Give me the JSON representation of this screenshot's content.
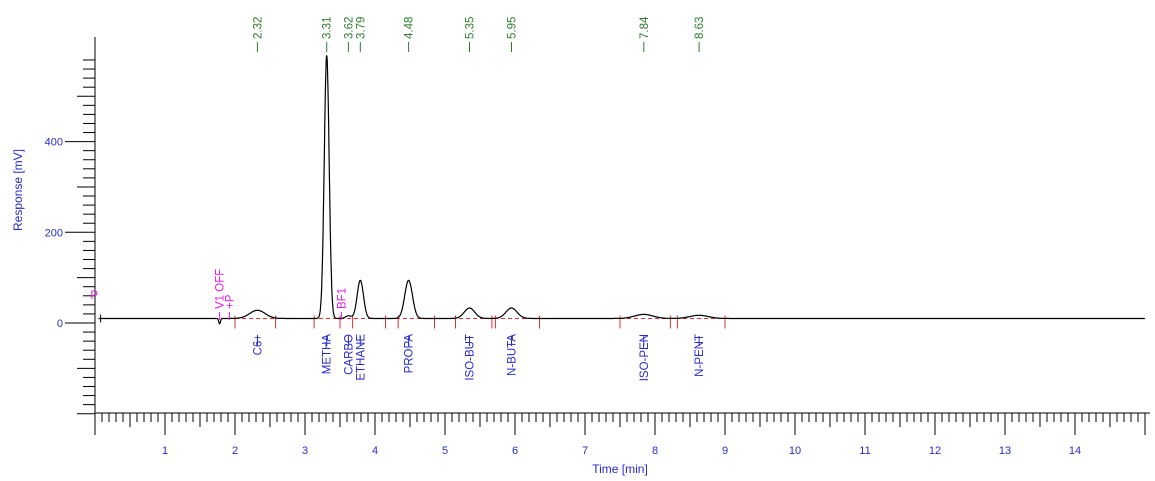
{
  "chart_data": {
    "type": "line",
    "title": "",
    "xlabel": "Time [min]",
    "ylabel": "Response [mV]",
    "xlim": [
      0,
      15
    ],
    "ylim": [
      -200,
      600
    ],
    "x_ticks": [
      1,
      2,
      3,
      4,
      5,
      6,
      7,
      8,
      9,
      10,
      11,
      12,
      13,
      14
    ],
    "y_ticks": [
      0,
      200,
      400
    ],
    "baseline_mV": 10,
    "peaks": [
      {
        "name": "C6+",
        "rt": 2.32,
        "height": 18,
        "width": 0.11
      },
      {
        "name": "METHA",
        "rt": 3.31,
        "height": 580,
        "width": 0.035
      },
      {
        "name": "CARBO",
        "rt": 3.62,
        "height": 6,
        "width": 0.04
      },
      {
        "name": "ETHANE",
        "rt": 3.79,
        "height": 84,
        "width": 0.045
      },
      {
        "name": "PROPA",
        "rt": 4.48,
        "height": 84,
        "width": 0.055
      },
      {
        "name": "ISO-BUT",
        "rt": 5.35,
        "height": 23,
        "width": 0.075
      },
      {
        "name": "N-BUTA",
        "rt": 5.95,
        "height": 23,
        "width": 0.08
      },
      {
        "name": "ISO-PEN",
        "rt": 7.84,
        "height": 9,
        "width": 0.13
      },
      {
        "name": "N-PENT",
        "rt": 8.63,
        "height": 7,
        "width": 0.13
      }
    ],
    "retention_labels": [
      "2.32",
      "3.31",
      "3.62",
      "3.79",
      "4.48",
      "5.35",
      "5.95",
      "7.84",
      "8.63"
    ],
    "events": [
      {
        "label": "P",
        "t": 0.02
      },
      {
        "label": "V1 OFF",
        "t": 1.78
      },
      {
        "label": "+P",
        "t": 1.92
      },
      {
        "label": "BF1",
        "t": 3.52
      }
    ],
    "integration_markers": [
      2.0,
      2.58,
      3.13,
      3.5,
      3.68,
      4.15,
      4.33,
      4.85,
      5.15,
      5.67,
      5.72,
      6.35,
      7.5,
      8.22,
      8.32,
      9.0
    ],
    "colors": {
      "trace": "#000000",
      "axis": "#000000",
      "axis_text": "#2a2acc",
      "retention_time": "#2e7d2e",
      "peak_name": "#2a2acc",
      "event": "#e020e0",
      "integration": "#e03030"
    }
  }
}
